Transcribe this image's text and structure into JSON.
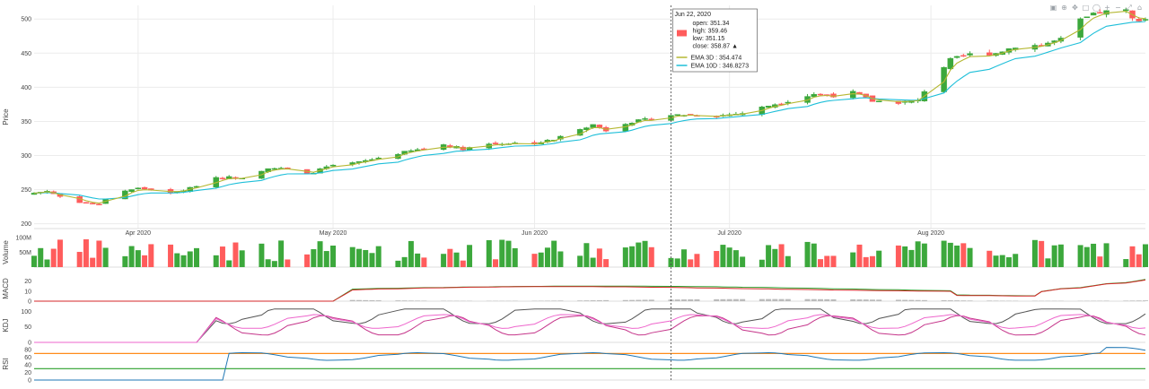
{
  "toolbar": {
    "icons": [
      "camera-icon",
      "zoom-icon",
      "pan-icon",
      "box-select-icon",
      "lasso-icon",
      "zoom-in-icon",
      "zoom-out-icon",
      "autoscale-icon",
      "home-icon"
    ],
    "glyphs": [
      "▣",
      "⊕",
      "✥",
      "□",
      "◯",
      "+",
      "−",
      "⤢",
      "⌂"
    ]
  },
  "chart_data": [
    {
      "type": "candlestick",
      "ylabel": "Price",
      "ylim": [
        193,
        520
      ],
      "yticks": [
        200,
        250,
        300,
        350,
        400,
        450,
        500
      ],
      "xlim": [
        "2020-03-16",
        "2020-09-03"
      ],
      "xticks": [
        {
          "date": "2020-04-01",
          "label": "Apr 2020"
        },
        {
          "date": "2020-05-01",
          "label": "May 2020"
        },
        {
          "date": "2020-06-01",
          "label": "Jun 2020"
        },
        {
          "date": "2020-07-01",
          "label": "Jul 2020"
        },
        {
          "date": "2020-08-01",
          "label": "Aug 2020"
        }
      ],
      "close_anchors": [
        [
          "2020-03-16",
          245
        ],
        [
          "2020-03-18",
          248
        ],
        [
          "2020-03-20",
          240
        ],
        [
          "2020-03-23",
          232
        ],
        [
          "2020-03-26",
          228
        ],
        [
          "2020-03-28",
          245
        ],
        [
          "2020-04-01",
          252
        ],
        [
          "2020-04-03",
          250
        ],
        [
          "2020-04-06",
          244
        ],
        [
          "2020-04-09",
          252
        ],
        [
          "2020-04-13",
          268
        ],
        [
          "2020-04-17",
          268
        ],
        [
          "2020-04-21",
          282
        ],
        [
          "2020-04-24",
          280
        ],
        [
          "2020-04-27",
          272
        ],
        [
          "2020-04-30",
          283
        ],
        [
          "2020-05-05",
          290
        ],
        [
          "2020-05-11",
          303
        ],
        [
          "2020-05-15",
          310
        ],
        [
          "2020-05-18",
          316
        ],
        [
          "2020-05-21",
          310
        ],
        [
          "2020-05-25",
          317
        ],
        [
          "2020-05-28",
          318
        ],
        [
          "2020-06-01",
          318
        ],
        [
          "2020-06-04",
          323
        ],
        [
          "2020-06-08",
          340
        ],
        [
          "2020-06-10",
          345
        ],
        [
          "2020-06-12",
          337
        ],
        [
          "2020-06-15",
          348
        ],
        [
          "2020-06-18",
          352
        ],
        [
          "2020-06-22",
          359
        ],
        [
          "2020-06-25",
          360
        ],
        [
          "2020-06-29",
          358
        ],
        [
          "2020-07-03",
          362
        ],
        [
          "2020-07-07",
          373
        ],
        [
          "2020-07-10",
          380
        ],
        [
          "2020-07-14",
          390
        ],
        [
          "2020-07-17",
          388
        ],
        [
          "2020-07-20",
          392
        ],
        [
          "2020-07-23",
          380
        ],
        [
          "2020-07-27",
          378
        ],
        [
          "2020-07-30",
          380
        ],
        [
          "2020-08-01",
          410
        ],
        [
          "2020-08-04",
          440
        ],
        [
          "2020-08-07",
          448
        ],
        [
          "2020-08-11",
          450
        ],
        [
          "2020-08-14",
          460
        ],
        [
          "2020-08-18",
          462
        ],
        [
          "2020-08-21",
          470
        ],
        [
          "2020-08-24",
          498
        ],
        [
          "2020-08-27",
          510
        ],
        [
          "2020-08-31",
          512
        ],
        [
          "2020-09-01",
          500
        ]
      ],
      "volume_range_millions": [
        0,
        100
      ],
      "series": [
        {
          "name": "EMA 3D",
          "span": 3
        },
        {
          "name": "EMA 10D",
          "span": 10
        }
      ],
      "hover": {
        "date": "Jun 22, 2020",
        "candle_date": "2020-06-22",
        "lines": [
          "open: 351.34",
          "high: 359.46",
          "low: 351.15",
          "close: 358.87  ▲"
        ],
        "ema_lines": [
          "EMA 3D : 354.474",
          "EMA 10D : 346.8273"
        ]
      }
    },
    {
      "type": "bar",
      "ylabel": "Volume",
      "yticks": [
        {
          "v": 50,
          "label": "50M"
        },
        {
          "v": 100,
          "label": "100M"
        }
      ]
    },
    {
      "type": "line",
      "ylabel": "MACD",
      "ylim": [
        0,
        25
      ],
      "yticks": [
        0,
        10,
        20
      ]
    },
    {
      "type": "line",
      "ylabel": "KDJ",
      "ylim": [
        0,
        110
      ],
      "yticks": [
        0,
        50,
        100
      ]
    },
    {
      "type": "line",
      "ylabel": "RSI",
      "ylim": [
        0,
        85
      ],
      "yticks": [
        0,
        20,
        40,
        60,
        80
      ],
      "levels": [
        70,
        30
      ]
    }
  ],
  "colors": {
    "up": "#3ca83c",
    "down": "#ff5c5c",
    "ema3": "#b5b833",
    "ema10": "#1fbfd9",
    "macd": "#2ca02c",
    "signal": "#d62728",
    "hist": "#bbbbbb",
    "k": "#ee66cc",
    "d": "#c5358a",
    "j": "#555555",
    "rsi": "#1f77b4",
    "rsi_over": "#ff8c1a",
    "rsi_under": "#2ca02c",
    "grid": "#ececec",
    "crosshair": "#444444"
  }
}
